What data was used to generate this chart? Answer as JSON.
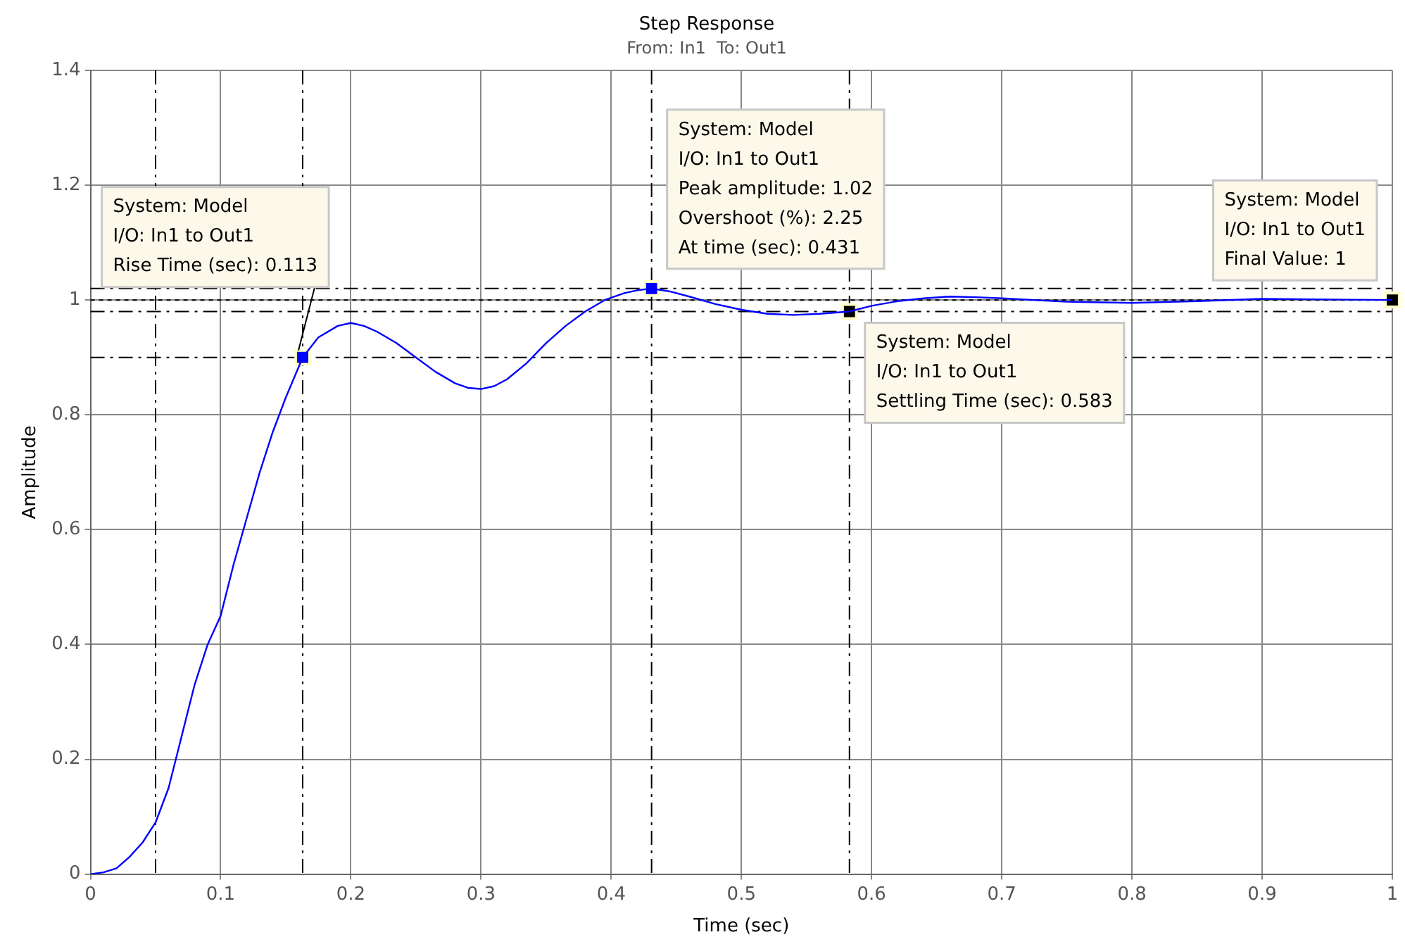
{
  "chart_data": {
    "type": "line",
    "title": "Step Response",
    "subtitle": "From: In1  To: Out1",
    "xlabel": "Time (sec)",
    "ylabel": "Amplitude",
    "xlim": [
      0,
      1
    ],
    "ylim": [
      0,
      1.4
    ],
    "xticks": [
      0,
      0.1,
      0.2,
      0.3,
      0.4,
      0.5,
      0.6,
      0.7,
      0.8,
      0.9,
      1
    ],
    "yticks": [
      0,
      0.2,
      0.4,
      0.6,
      0.8,
      1,
      1.2,
      1.4
    ],
    "grid": true,
    "legend": false,
    "series": [
      {
        "type": "line",
        "color": "#0000ff",
        "marker": "none",
        "x": [
          0,
          0.01,
          0.02,
          0.03,
          0.04,
          0.05,
          0.06,
          0.07,
          0.08,
          0.09,
          0.1,
          0.11,
          0.12,
          0.13,
          0.14,
          0.15,
          0.163,
          0.175,
          0.19,
          0.2,
          0.21,
          0.22,
          0.235,
          0.25,
          0.265,
          0.28,
          0.29,
          0.3,
          0.31,
          0.32,
          0.335,
          0.35,
          0.365,
          0.38,
          0.395,
          0.41,
          0.42,
          0.431,
          0.445,
          0.46,
          0.48,
          0.5,
          0.52,
          0.54,
          0.56,
          0.583,
          0.6,
          0.62,
          0.64,
          0.66,
          0.68,
          0.7,
          0.75,
          0.8,
          0.85,
          0.9,
          0.95,
          1
        ],
        "values": [
          0,
          0.003,
          0.01,
          0.03,
          0.055,
          0.09,
          0.15,
          0.24,
          0.33,
          0.4,
          0.45,
          0.54,
          0.62,
          0.7,
          0.77,
          0.83,
          0.9,
          0.935,
          0.955,
          0.96,
          0.955,
          0.945,
          0.925,
          0.9,
          0.875,
          0.855,
          0.847,
          0.845,
          0.85,
          0.862,
          0.89,
          0.925,
          0.955,
          0.98,
          1.0,
          1.012,
          1.017,
          1.02,
          1.015,
          1.006,
          0.993,
          0.983,
          0.976,
          0.974,
          0.976,
          0.98,
          0.99,
          0.998,
          1.003,
          1.006,
          1.005,
          1.003,
          0.997,
          0.995,
          0.998,
          1.002,
          1.001,
          1
        ]
      },
      {
        "type": "scatter",
        "marker": "square",
        "x": [
          0.163,
          0.431,
          0.583,
          1
        ],
        "values": [
          0.9,
          1.02,
          0.98,
          1
        ],
        "colors": [
          "#0000ff",
          "#0000ff",
          "#000000",
          "#000000"
        ]
      }
    ],
    "ref_lines": [
      {
        "axis": "y",
        "value": 0.9,
        "color": "#000000",
        "line_style": "dashed"
      },
      {
        "axis": "y",
        "value": 1.02,
        "color": "#000000",
        "line_style": "dashed"
      },
      {
        "axis": "y",
        "value": 1,
        "color": "#000000",
        "line_style": "dotted"
      },
      {
        "axis": "y",
        "value": 0.98,
        "color": "#000000",
        "line_style": "dashed"
      },
      {
        "axis": "x",
        "value": 0.05,
        "color": "#000000",
        "line_style": "dashed"
      },
      {
        "axis": "x",
        "value": 0.163,
        "color": "#000000",
        "line_style": "dashed"
      },
      {
        "axis": "x",
        "value": 0.431,
        "color": "#000000",
        "line_style": "dashed"
      },
      {
        "axis": "x",
        "value": 0.583,
        "color": "#000000",
        "line_style": "dashed"
      }
    ],
    "annotations": [
      {
        "text": "System: Model\nI/O: In1 to Out1\nRise Time (sec): 0.113",
        "x": 0.163,
        "y": 0.9
      },
      {
        "text": "System: Model\nI/O: In1 to Out1\nPeak amplitude: 1.02\nOvershoot (%): 2.25\nAt time (sec): 0.431",
        "x": 0.431,
        "y": 1.02
      },
      {
        "text": "System: Model\nI/O: In1 to Out1\nSettling Time (sec): 0.583",
        "x": 0.583,
        "y": 0.98
      },
      {
        "text": "System: Model\nI/O: In1 to Out1\nFinal Value: 1",
        "x": 1,
        "y": 1
      }
    ]
  }
}
